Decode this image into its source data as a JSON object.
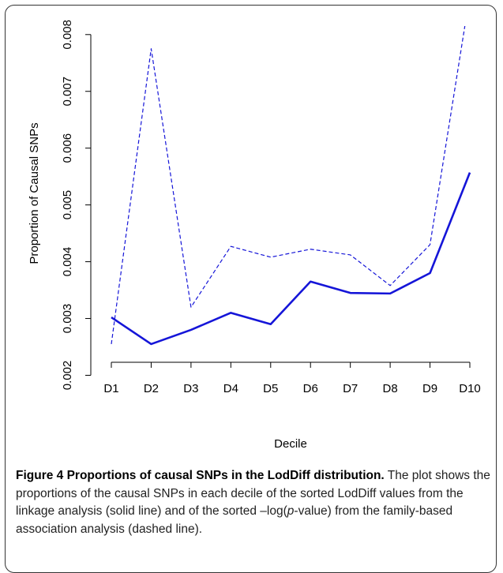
{
  "chart_data": {
    "type": "line",
    "xlabel": "Decile",
    "ylabel": "Proportion of Causal SNPs",
    "categories": [
      "D1",
      "D2",
      "D3",
      "D4",
      "D5",
      "D6",
      "D7",
      "D8",
      "D9",
      "D10"
    ],
    "series": [
      {
        "name": "linkage analysis",
        "color": "#1515d8",
        "style": "solid",
        "values": [
          0.00302,
          0.00255,
          0.0028,
          0.0031,
          0.0029,
          0.00365,
          0.00345,
          0.00344,
          0.0038,
          0.00557
        ]
      },
      {
        "name": "family-based association analysis",
        "color": "#1515d8",
        "style": "dashed",
        "values": [
          0.00255,
          0.00775,
          0.0032,
          0.00427,
          0.00408,
          0.00422,
          0.00412,
          0.00358,
          0.0043,
          0.0087
        ]
      }
    ],
    "ylim": [
      0.00225,
      0.00815
    ],
    "yticks": [
      0.002,
      0.003,
      0.004,
      0.005,
      0.006,
      0.007,
      0.008
    ],
    "grid": false
  },
  "caption": {
    "title": "Figure 4 Proportions of causal SNPs in the LodDiff distribution.",
    "body_before": "The plot shows the proportions of the causal SNPs in each decile of the sorted LodDiff values from the linkage analysis (solid line) and of the sorted –log(",
    "body_italic": "p",
    "body_after": "-value) from the family-based association analysis (dashed line)."
  }
}
